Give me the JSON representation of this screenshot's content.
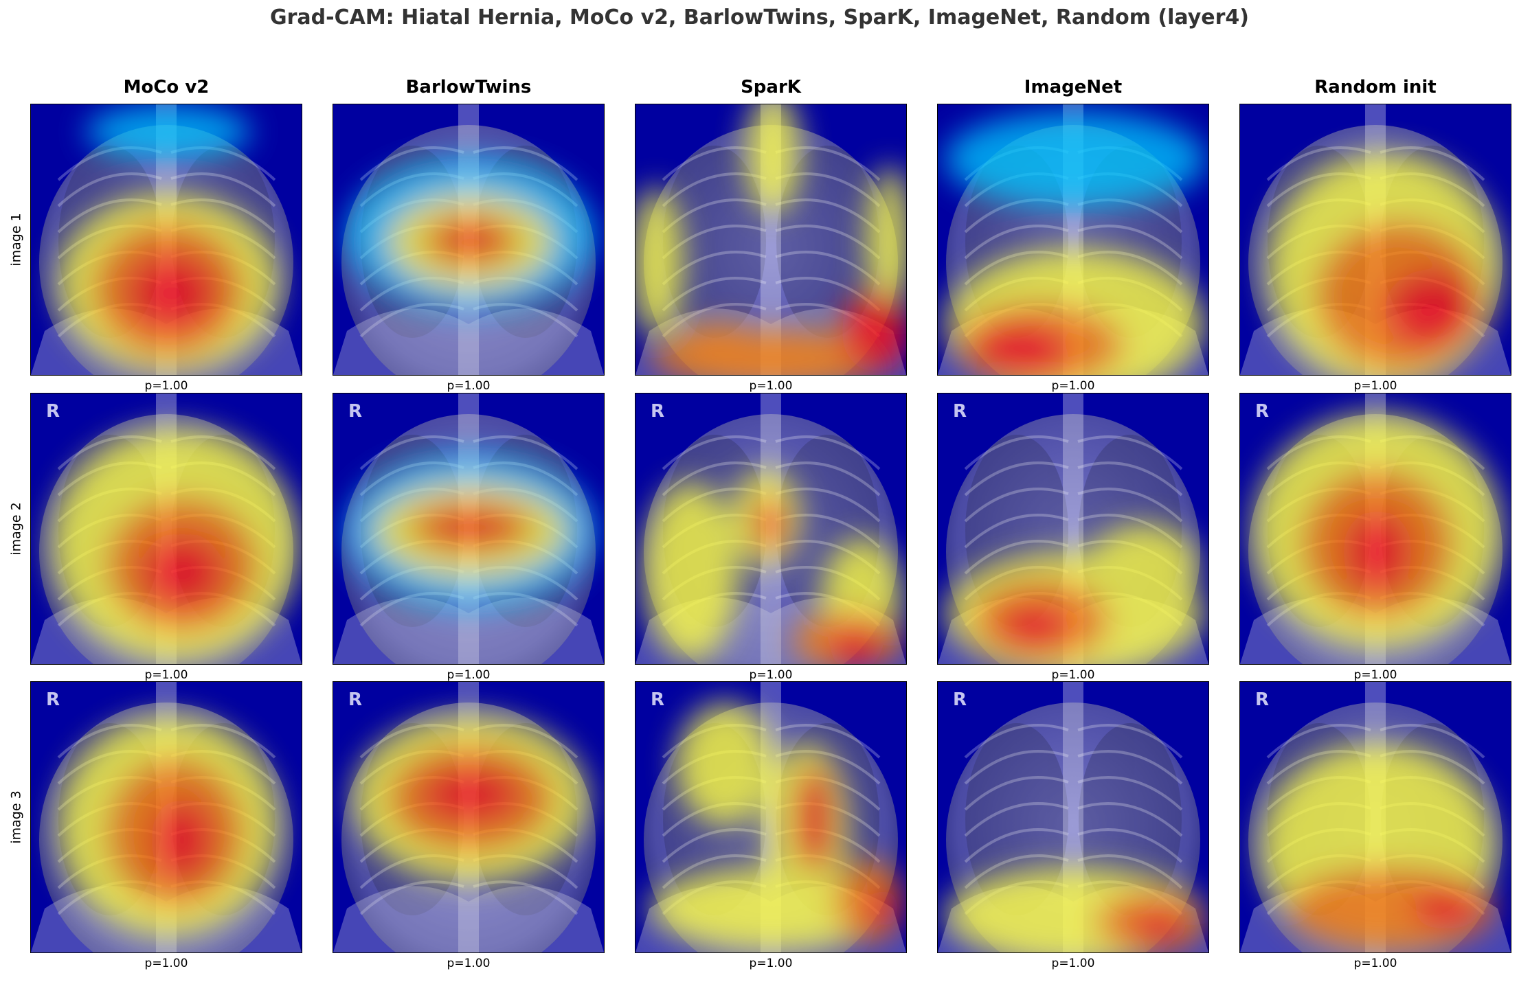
{
  "title": "Grad-CAM: Hiatal Hernia, MoCo v2, BarlowTwins, SparK, ImageNet, Random (layer4)",
  "columns": [
    "MoCo v2",
    "BarlowTwins",
    "SparK",
    "ImageNet",
    "Random init"
  ],
  "rows": [
    {
      "label": "image 1",
      "marker": "",
      "p": [
        "p=1.00",
        "p=1.00",
        "p=1.00",
        "p=1.00",
        "p=1.00"
      ]
    },
    {
      "label": "image 2",
      "marker": "R",
      "p": [
        "p=1.00",
        "p=1.00",
        "p=1.00",
        "p=1.00",
        "p=1.00"
      ]
    },
    {
      "label": "image 3",
      "marker": "R",
      "p": [
        "p=1.00",
        "p=1.00",
        "p=1.00",
        "p=1.00",
        "p=1.00"
      ]
    }
  ],
  "colormap": {
    "low": "#0000a0",
    "mid_low": "#00c8ff",
    "mid": "#ffff40",
    "mid_high": "#ff8000",
    "high": "#ff1010"
  }
}
